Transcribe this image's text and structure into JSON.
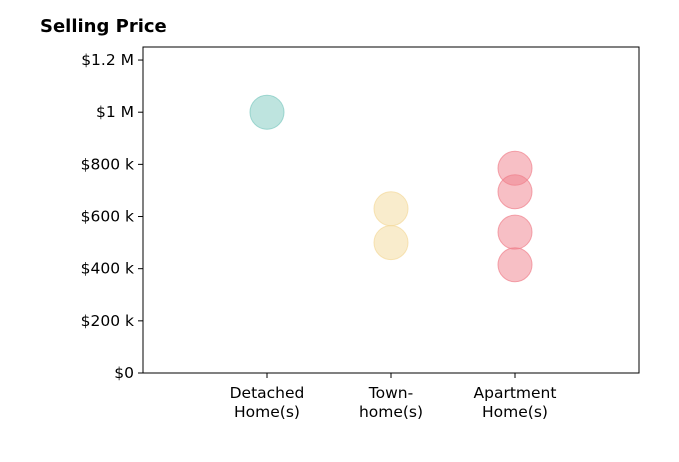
{
  "chart_data": {
    "type": "scatter",
    "title": "Selling Price",
    "xlabel": "",
    "ylabel": "",
    "categories": [
      "Detached Home(s)",
      "Town-home(s)",
      "Apartment Home(s)"
    ],
    "category_tick_lines": [
      [
        "Detached",
        "Home(s)"
      ],
      [
        "Town-",
        "home(s)"
      ],
      [
        "Apartment",
        "Home(s)"
      ]
    ],
    "ylim": [
      0,
      1250000
    ],
    "yticks": [
      {
        "value": 0,
        "label": "$0"
      },
      {
        "value": 200000,
        "label": "$200 k"
      },
      {
        "value": 400000,
        "label": "$400 k"
      },
      {
        "value": 600000,
        "label": "$600 k"
      },
      {
        "value": 800000,
        "label": "$800 k"
      },
      {
        "value": 1000000,
        "label": "$1 M"
      },
      {
        "value": 1200000,
        "label": "$1.2 M"
      }
    ],
    "grid": false,
    "legend": "none",
    "points": [
      {
        "category": "Detached Home(s)",
        "y": 1000000
      },
      {
        "category": "Town-home(s)",
        "y": 630000
      },
      {
        "category": "Town-home(s)",
        "y": 500000
      },
      {
        "category": "Apartment Home(s)",
        "y": 785000
      },
      {
        "category": "Apartment Home(s)",
        "y": 695000
      },
      {
        "category": "Apartment Home(s)",
        "y": 540000
      },
      {
        "category": "Apartment Home(s)",
        "y": 415000
      }
    ],
    "colors": {
      "Detached Home(s)": "#7ec9c0",
      "Town-home(s)": "#f4d99a",
      "Apartment Home(s)": "#f0808c"
    }
  }
}
